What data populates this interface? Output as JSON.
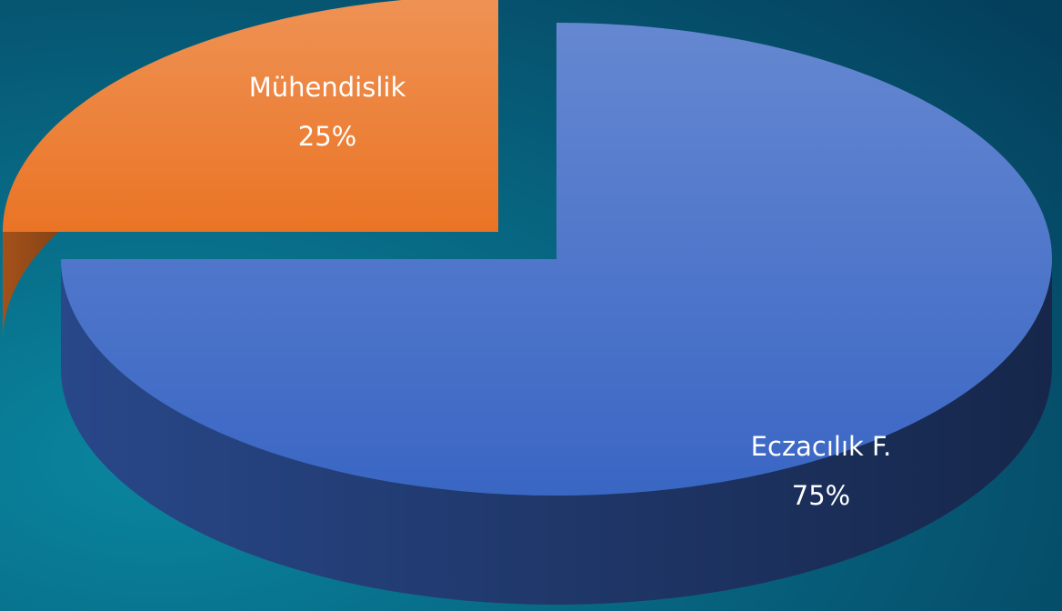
{
  "chart_data": {
    "type": "pie",
    "categories": [
      "Eczacılık F.",
      "Mühendislik"
    ],
    "values": [
      75,
      25
    ],
    "value_labels": [
      "75%",
      "25%"
    ],
    "colors": [
      "#3a66c4",
      "#ea7425"
    ]
  }
}
